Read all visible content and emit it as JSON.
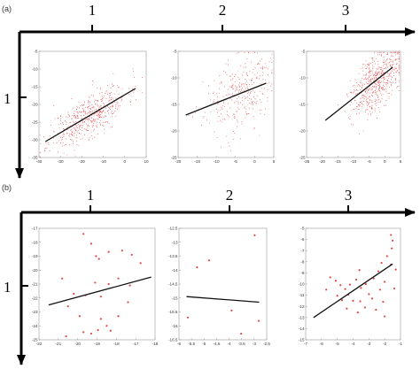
{
  "colors": {
    "point": "#e04848",
    "line": "#111111",
    "frame": "#999999",
    "axis": "#000000"
  },
  "panels": [
    {
      "tag": "(a)",
      "col_labels": [
        "1",
        "2",
        "3"
      ],
      "row_label": "1",
      "charts": [
        {
          "type": "scatter",
          "seed": 11,
          "n": 520,
          "xlim": [
            -40,
            10
          ],
          "ylim": [
            -35,
            -5
          ],
          "xticks": [
            "-40",
            "-30",
            "-20",
            "-10",
            "0",
            "10"
          ],
          "yticks": [
            "-5",
            "-10",
            "-15",
            "-20",
            "-25",
            "-30",
            "-35"
          ],
          "cloud": {
            "x_center": -17,
            "x_spread": 9,
            "slope": 0.36,
            "noise": 3.0
          },
          "fit": {
            "x": [
              -37,
              5
            ],
            "y": [
              -30.5,
              -15.5
            ]
          }
        },
        {
          "type": "scatter",
          "seed": 23,
          "n": 300,
          "xlim": [
            -20,
            5
          ],
          "ylim": [
            -25,
            -5
          ],
          "xticks": [
            "-20",
            "-15",
            "-10",
            "-5",
            "0",
            "5"
          ],
          "yticks": [
            "-5",
            "-10",
            "-15",
            "-20",
            "-25"
          ],
          "cloud": {
            "x_center": -4,
            "x_spread": 4.5,
            "slope": 0.31,
            "noise": 3.4
          },
          "fit": {
            "x": [
              -18,
              3
            ],
            "y": [
              -17,
              -11
            ]
          }
        },
        {
          "type": "scatter",
          "seed": 37,
          "n": 560,
          "xlim": [
            -25,
            5
          ],
          "ylim": [
            -25,
            -5
          ],
          "xticks": [
            "-25",
            "-20",
            "-15",
            "-10",
            "-5",
            "0",
            "5"
          ],
          "yticks": [
            "-5",
            "-10",
            "-15",
            "-20",
            "-25"
          ],
          "cloud": {
            "x_center": -2.5,
            "x_spread": 4,
            "slope": 0.44,
            "noise": 2.6
          },
          "fit": {
            "x": [
              -19,
              2.5
            ],
            "y": [
              -18,
              -8
            ]
          }
        }
      ]
    },
    {
      "tag": "(b)",
      "col_labels": [
        "1",
        "2",
        "3"
      ],
      "row_label": "1",
      "charts": [
        {
          "type": "scatter",
          "xlim": [
            -22,
            -16
          ],
          "ylim": [
            -25,
            -17
          ],
          "xticks": [
            "-22",
            "-21",
            "-20",
            "-19",
            "-18",
            "-17",
            "-16"
          ],
          "yticks": [
            "-17",
            "-18",
            "-19",
            "-20",
            "-21",
            "-22",
            "-23",
            "-24",
            "-25"
          ],
          "points": [
            [
              -19.7,
              -17.4
            ],
            [
              -19.3,
              -18.1
            ],
            [
              -19.05,
              -19.0
            ],
            [
              -18.9,
              -19.2
            ],
            [
              -18.4,
              -18.7
            ],
            [
              -17.7,
              -18.6
            ],
            [
              -17.2,
              -18.9
            ],
            [
              -16.75,
              -19.5
            ],
            [
              -20.8,
              -20.6
            ],
            [
              -19.1,
              -20.9
            ],
            [
              -18.4,
              -21.0
            ],
            [
              -17.9,
              -20.6
            ],
            [
              -17.3,
              -21.1
            ],
            [
              -20.2,
              -21.7
            ],
            [
              -19.6,
              -21.8
            ],
            [
              -18.8,
              -21.9
            ],
            [
              -17.4,
              -22.3
            ],
            [
              -20.5,
              -22.6
            ],
            [
              -19.9,
              -23.3
            ],
            [
              -18.8,
              -23.5
            ],
            [
              -17.9,
              -23.3
            ],
            [
              -18.5,
              -24.0
            ],
            [
              -18.95,
              -24.3
            ],
            [
              -19.3,
              -24.55
            ],
            [
              -19.7,
              -24.45
            ],
            [
              -18.3,
              -24.35
            ],
            [
              -20.6,
              -24.75
            ]
          ],
          "fit": {
            "x": [
              -21.5,
              -16.2
            ],
            "y": [
              -22.5,
              -20.5
            ]
          }
        },
        {
          "type": "scatter",
          "xlim": [
            -6,
            -2.5
          ],
          "ylim": [
            -16.5,
            -12.5
          ],
          "xticks": [
            "-6",
            "-5.5",
            "-5",
            "-4.5",
            "-4",
            "-3.5",
            "-3",
            "-2.5"
          ],
          "yticks": [
            "-12.5",
            "-13",
            "-13.5",
            "-14",
            "-14.5",
            "-15",
            "-15.5",
            "-16",
            "-16.5"
          ],
          "points": [
            [
              -2.98,
              -12.75
            ],
            [
              -4.8,
              -13.65
            ],
            [
              -5.28,
              -13.9
            ],
            [
              -3.9,
              -15.45
            ],
            [
              -5.65,
              -15.7
            ],
            [
              -2.82,
              -15.82
            ],
            [
              -3.52,
              -16.28
            ]
          ],
          "fit": {
            "x": [
              -5.7,
              -2.8
            ],
            "y": [
              -14.95,
              -15.15
            ]
          }
        },
        {
          "type": "scatter",
          "xlim": [
            -7,
            -1
          ],
          "ylim": [
            -15,
            -5
          ],
          "xticks": [
            "-7",
            "-6",
            "-5",
            "-4",
            "-3",
            "-2",
            "-1"
          ],
          "yticks": [
            "-5",
            "-6",
            "-7",
            "-8",
            "-9",
            "-10",
            "-11",
            "-12",
            "-13",
            "-14",
            "-15"
          ],
          "points": [
            [
              -1.6,
              -5.6
            ],
            [
              -1.5,
              -6.1
            ],
            [
              -1.55,
              -6.8
            ],
            [
              -1.85,
              -7.5
            ],
            [
              -2.2,
              -8.1
            ],
            [
              -1.6,
              -8.25
            ],
            [
              -1.3,
              -8.7
            ],
            [
              -2.4,
              -8.85
            ],
            [
              -3.6,
              -8.75
            ],
            [
              -5.45,
              -9.4
            ],
            [
              -5.1,
              -9.7
            ],
            [
              -3.8,
              -9.6
            ],
            [
              -2.7,
              -9.5
            ],
            [
              -4.8,
              -10.1
            ],
            [
              -4.2,
              -10.05
            ],
            [
              -3.2,
              -10.0
            ],
            [
              -2.0,
              -9.8
            ],
            [
              -5.7,
              -10.5
            ],
            [
              -4.5,
              -10.45
            ],
            [
              -3.5,
              -10.35
            ],
            [
              -2.3,
              -10.5
            ],
            [
              -1.4,
              -10.4
            ],
            [
              -5.0,
              -11.05
            ],
            [
              -4.3,
              -10.95
            ],
            [
              -3.0,
              -10.9
            ],
            [
              -2.8,
              -11.3
            ],
            [
              -4.0,
              -11.5
            ],
            [
              -3.55,
              -11.55
            ],
            [
              -2.1,
              -11.6
            ],
            [
              -4.7,
              -11.45
            ],
            [
              -3.25,
              -12.1
            ],
            [
              -2.55,
              -12.3
            ],
            [
              -3.7,
              -12.55
            ],
            [
              -2.0,
              -12.9
            ],
            [
              -4.4,
              -12.2
            ]
          ],
          "fit": {
            "x": [
              -6.5,
              -1.5
            ],
            "y": [
              -13.0,
              -8.2
            ]
          }
        }
      ]
    }
  ]
}
